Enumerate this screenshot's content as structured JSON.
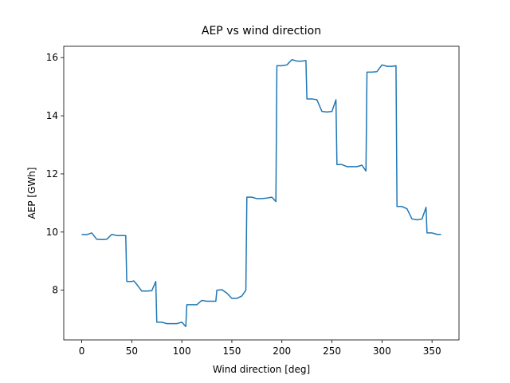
{
  "chart_data": {
    "type": "line",
    "title": "AEP vs wind direction",
    "x_label": "Wind direction [deg]",
    "y_label": "AEP [GWh]",
    "x": [
      0,
      5,
      10,
      15,
      20,
      25,
      30,
      35,
      40,
      44,
      45,
      50,
      52,
      55,
      60,
      65,
      70,
      74,
      75,
      80,
      85,
      90,
      95,
      100,
      104,
      105,
      110,
      115,
      120,
      125,
      130,
      134,
      135,
      140,
      145,
      150,
      155,
      160,
      164,
      165,
      170,
      175,
      180,
      185,
      190,
      194,
      195,
      200,
      205,
      210,
      215,
      220,
      224,
      225,
      230,
      235,
      240,
      245,
      250,
      254,
      255,
      260,
      265,
      270,
      275,
      280,
      284,
      285,
      290,
      295,
      300,
      305,
      310,
      314,
      315,
      320,
      325,
      330,
      335,
      340,
      344,
      345,
      350,
      355,
      359
    ],
    "series": [
      {
        "name": "AEP",
        "color": "#1f77b4",
        "values": [
          9.92,
          9.91,
          9.97,
          9.75,
          9.74,
          9.75,
          9.92,
          9.88,
          9.88,
          9.88,
          8.3,
          8.3,
          8.32,
          8.2,
          7.97,
          7.97,
          7.98,
          8.3,
          6.9,
          6.9,
          6.85,
          6.85,
          6.85,
          6.9,
          6.75,
          7.5,
          7.5,
          7.5,
          7.65,
          7.62,
          7.62,
          7.62,
          8.0,
          8.02,
          7.9,
          7.72,
          7.72,
          7.8,
          8.0,
          11.2,
          11.2,
          11.15,
          11.15,
          11.17,
          11.2,
          11.05,
          15.72,
          15.72,
          15.75,
          15.93,
          15.88,
          15.88,
          15.9,
          14.58,
          14.58,
          14.55,
          14.15,
          14.13,
          14.15,
          14.55,
          12.32,
          12.32,
          12.25,
          12.25,
          12.25,
          12.3,
          12.1,
          15.5,
          15.5,
          15.52,
          15.75,
          15.7,
          15.7,
          15.72,
          10.88,
          10.88,
          10.8,
          10.45,
          10.42,
          10.45,
          10.85,
          9.97,
          9.97,
          9.92,
          9.92
        ]
      }
    ],
    "xlim": [
      -17.95,
      376.95
    ],
    "ylim": [
      6.29,
      16.39
    ],
    "xticks": [
      0,
      50,
      100,
      150,
      200,
      250,
      300,
      350
    ],
    "yticks": [
      8,
      10,
      12,
      14,
      16
    ]
  }
}
